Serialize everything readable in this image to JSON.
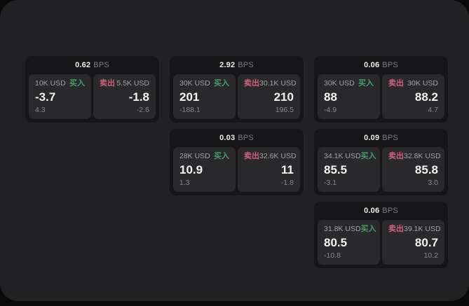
{
  "page": {
    "bps_suffix": "BPS",
    "buy_label": "买入",
    "sell_label": "卖出",
    "colors": {
      "outer_bg": "#0a0a0b",
      "panel_bg": "#212123",
      "card_bg": "#161618",
      "tile_bg": "#29292c",
      "primary_text": "#f4f4f5",
      "secondary_text": "#a2a2a6",
      "muted_text": "#87878b",
      "buy_green": "#43a06a",
      "sell_red": "#d16079"
    }
  },
  "cards": [
    {
      "row": 1,
      "col": 1,
      "bps": "0.62",
      "buy": {
        "amount": "10K USD",
        "value": "-3.7",
        "change": "4.3"
      },
      "sell": {
        "amount": "5.5K USD",
        "value": "-1.8",
        "change": "-2.6"
      }
    },
    {
      "row": 1,
      "col": 2,
      "bps": "2.92",
      "buy": {
        "amount": "30K USD",
        "value": "201",
        "change": "-188.1"
      },
      "sell": {
        "amount": "30.1K USD",
        "value": "210",
        "change": "196.5"
      }
    },
    {
      "row": 1,
      "col": 3,
      "bps": "0.06",
      "buy": {
        "amount": "30K USD",
        "value": "88",
        "change": "-4.9"
      },
      "sell": {
        "amount": "30K USD",
        "value": "88.2",
        "change": "4.7"
      }
    },
    {
      "row": 2,
      "col": 2,
      "bps": "0.03",
      "buy": {
        "amount": "28K USD",
        "value": "10.9",
        "change": "1.3"
      },
      "sell": {
        "amount": "32.6K USD",
        "value": "11",
        "change": "-1.8"
      }
    },
    {
      "row": 2,
      "col": 3,
      "bps": "0.09",
      "buy": {
        "amount": "34.1K USD",
        "value": "85.5",
        "change": "-3.1"
      },
      "sell": {
        "amount": "32.8K USD",
        "value": "85.8",
        "change": "3.0"
      }
    },
    {
      "row": 3,
      "col": 3,
      "bps": "0.06",
      "buy": {
        "amount": "31.8K USD",
        "value": "80.5",
        "change": "-10.8"
      },
      "sell": {
        "amount": "39.1K USD",
        "value": "80.7",
        "change": "10.2"
      }
    }
  ]
}
